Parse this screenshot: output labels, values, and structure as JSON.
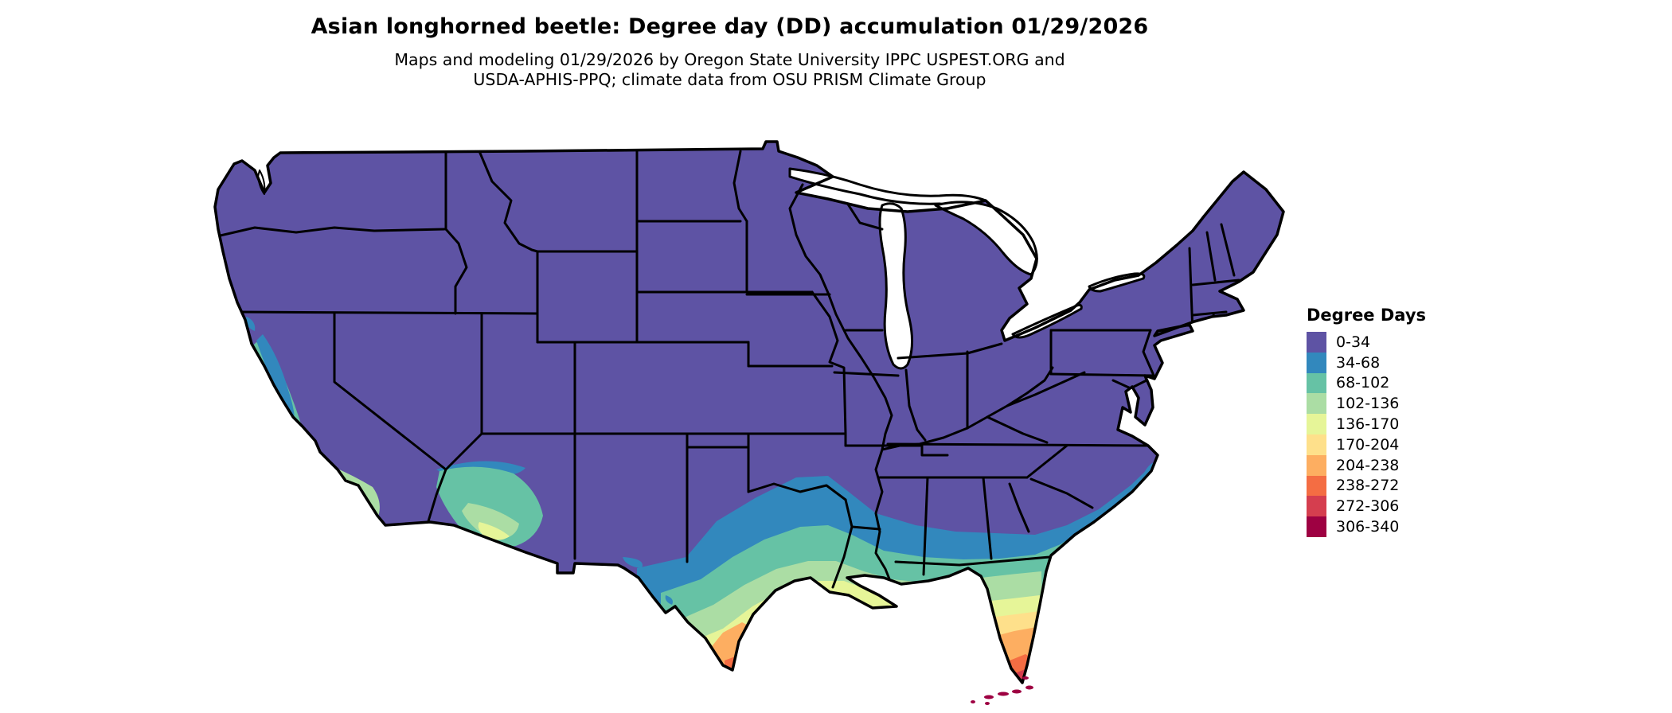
{
  "header": {
    "title": "Asian longhorned beetle: Degree day (DD) accumulation 01/29/2026",
    "subtitle_line1": "Maps and modeling 01/29/2026 by Oregon State University IPPC USPEST.ORG and",
    "subtitle_line2": "USDA-APHIS-PPQ; climate data from OSU PRISM Climate Group"
  },
  "legend": {
    "title": "Degree Days",
    "items": [
      {
        "label": "0-34",
        "color": "#5e53a4"
      },
      {
        "label": "34-68",
        "color": "#3288bd"
      },
      {
        "label": "68-102",
        "color": "#66c2a5"
      },
      {
        "label": "102-136",
        "color": "#abdda4"
      },
      {
        "label": "136-170",
        "color": "#e6f598"
      },
      {
        "label": "170-204",
        "color": "#fee08b"
      },
      {
        "label": "204-238",
        "color": "#fdae61"
      },
      {
        "label": "238-272",
        "color": "#f46d43"
      },
      {
        "label": "272-306",
        "color": "#d53e4f"
      },
      {
        "label": "306-340",
        "color": "#9e0142"
      }
    ]
  },
  "map_data": {
    "type": "choropleth_map",
    "region": "Contiguous United States with state borders",
    "variable": "Degree day (DD) accumulation as of 01/29/2026",
    "bins": [
      {
        "range": "0-34",
        "color": "#5e53a4",
        "where": "Most of CONUS: West, Rockies, Plains, Midwest, Northeast, Appalachia"
      },
      {
        "range": "34-68",
        "color": "#3288bd",
        "where": "Central Texas, S. Oklahoma, Arkansas-Louisiana line, central MS/AL/GA, SC coast, NC coast sliver, CA valleys"
      },
      {
        "range": "68-102",
        "color": "#66c2a5",
        "where": "South-central Texas, Gulf Coast states, N. Florida, S. Arizona, Sierra foothills"
      },
      {
        "range": "102-136",
        "color": "#abdda4",
        "where": "Texas coastal plain, S. Louisiana, N.-central Florida, S. California, S. Arizona"
      },
      {
        "range": "136-170",
        "color": "#e6f598",
        "where": "Texas coast, Louisiana coast fringe, central Florida"
      },
      {
        "range": "170-204",
        "color": "#fee08b",
        "where": "S. Texas brush country, central Florida"
      },
      {
        "range": "204-238",
        "color": "#fdae61",
        "where": "Rio Grande Valley, S.-central Florida"
      },
      {
        "range": "238-272",
        "color": "#f46d43",
        "where": "S. Texas tip, S. Florida"
      },
      {
        "range": "272-306",
        "color": "#d53e4f",
        "where": "S. Florida tip"
      },
      {
        "range": "306-340",
        "color": "#9e0142",
        "where": "Florida Keys"
      }
    ],
    "base_color": "#5e53a4",
    "state_border_color": "#000000",
    "water_color": "#ffffff",
    "background_color": "#ffffff"
  }
}
